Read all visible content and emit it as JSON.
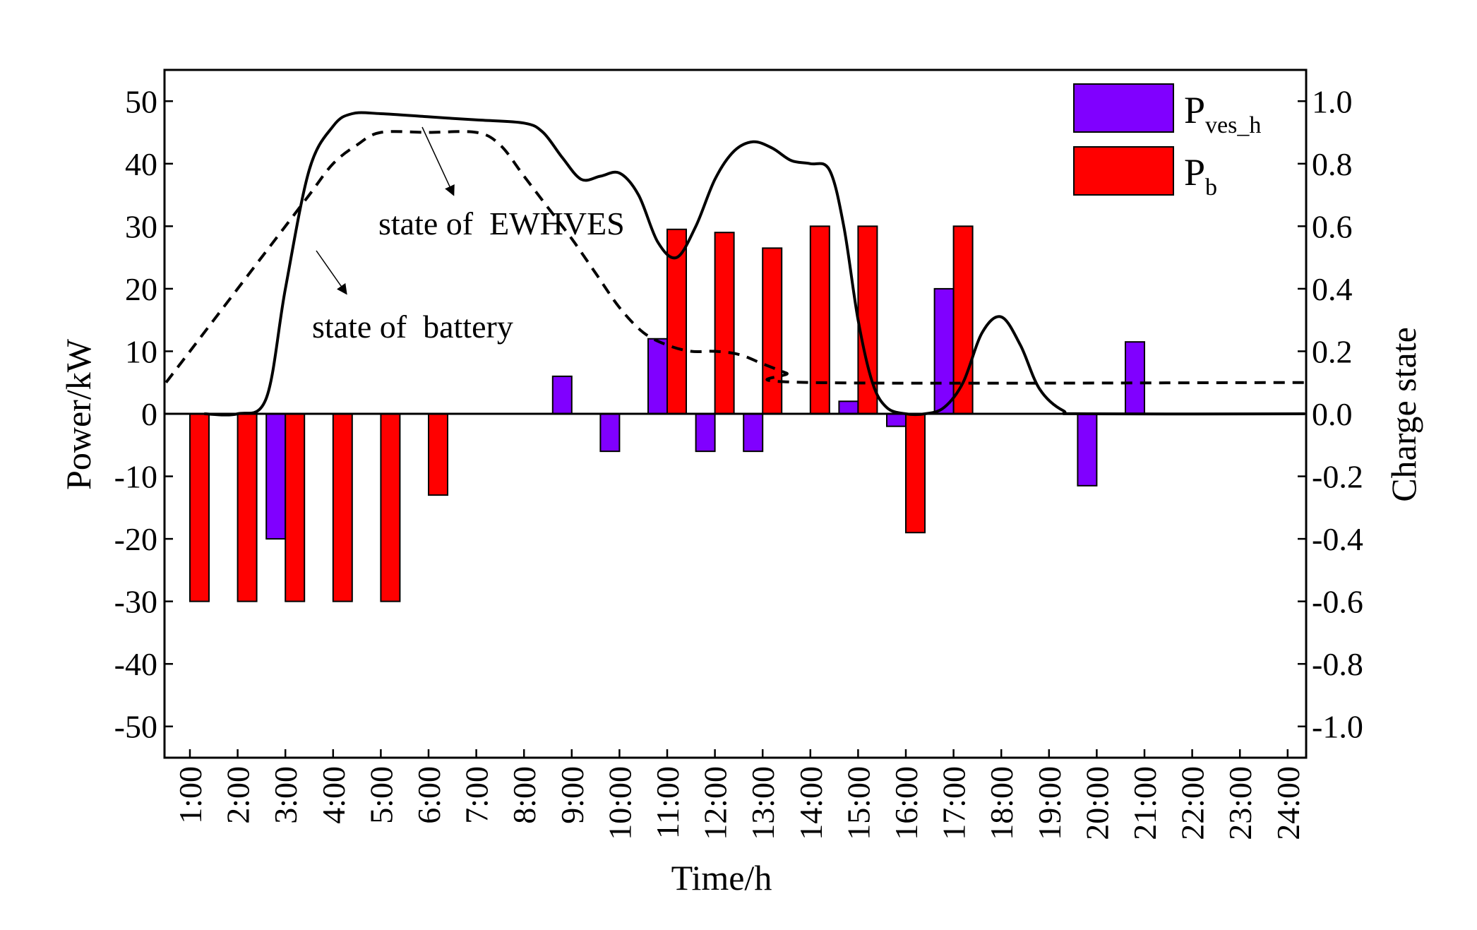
{
  "chart_data": {
    "type": "bar",
    "categories": [
      "1:00",
      "2:00",
      "3:00",
      "4:00",
      "5:00",
      "6:00",
      "7:00",
      "8:00",
      "9:00",
      "10:00",
      "11:00",
      "12:00",
      "13:00",
      "14:00",
      "15:00",
      "16:00",
      "17:00",
      "18:00",
      "19:00",
      "20:00",
      "21:00",
      "22:00",
      "23:00",
      "24:00"
    ],
    "xlabel": "Time/h",
    "ylabel": "Power/kW",
    "y2label": "Charge state",
    "ylim": [
      -55,
      55
    ],
    "y2lim": [
      -1.1,
      1.1
    ],
    "yticks": [
      -50,
      -40,
      -30,
      -20,
      -10,
      0,
      10,
      20,
      30,
      40,
      50
    ],
    "yticklabels": [
      "-50",
      "-40",
      "-30",
      "-20",
      "-10",
      "0",
      "10",
      "20",
      "30",
      "40",
      "50"
    ],
    "y2ticks": [
      -1.0,
      -0.8,
      -0.6,
      -0.4,
      -0.2,
      0.0,
      0.2,
      0.4,
      0.6,
      0.8,
      1.0
    ],
    "y2ticklabels": [
      "-1.0",
      "-0.8",
      "-0.6",
      "-0.4",
      "-0.2",
      "0.0",
      "0.2",
      "0.4",
      "0.6",
      "0.8",
      "1.0"
    ],
    "series": [
      {
        "name": "P_ves_h",
        "label_main": "P",
        "label_sub": "ves_h",
        "color": "#8000ff",
        "values": [
          0,
          0,
          -20,
          0,
          0,
          0,
          0,
          0,
          6,
          -6,
          12,
          -6,
          -6,
          0,
          2,
          -2,
          20,
          0,
          0,
          -11.5,
          11.5,
          0,
          0,
          0
        ]
      },
      {
        "name": "P_b",
        "label_main": "P",
        "label_sub": "b",
        "color": "#ff0000",
        "values": [
          -30,
          -30,
          -30,
          -30,
          -30,
          -13,
          0,
          0,
          0,
          0,
          29.5,
          29,
          26.5,
          30,
          30,
          -19,
          30,
          0,
          0,
          0,
          0,
          0,
          0,
          0
        ]
      }
    ],
    "lines": [
      {
        "name": "state of EWHVES",
        "style": "solid",
        "axis": "right",
        "points": [
          [
            0.3,
            0
          ],
          [
            1.0,
            0.0
          ],
          [
            1.6,
            0.05
          ],
          [
            2.0,
            0.4
          ],
          [
            2.5,
            0.78
          ],
          [
            3.0,
            0.92
          ],
          [
            3.4,
            0.96
          ],
          [
            4.0,
            0.96
          ],
          [
            5.0,
            0.95
          ],
          [
            6.0,
            0.94
          ],
          [
            7.0,
            0.93
          ],
          [
            7.4,
            0.9
          ],
          [
            7.8,
            0.82
          ],
          [
            8.2,
            0.75
          ],
          [
            8.6,
            0.76
          ],
          [
            9.0,
            0.77
          ],
          [
            9.4,
            0.7
          ],
          [
            9.8,
            0.55
          ],
          [
            10.2,
            0.5
          ],
          [
            10.6,
            0.6
          ],
          [
            11.0,
            0.75
          ],
          [
            11.4,
            0.84
          ],
          [
            11.8,
            0.87
          ],
          [
            12.2,
            0.85
          ],
          [
            12.6,
            0.81
          ],
          [
            13.0,
            0.8
          ],
          [
            13.4,
            0.78
          ],
          [
            13.7,
            0.6
          ],
          [
            14.0,
            0.3
          ],
          [
            14.3,
            0.1
          ],
          [
            14.6,
            0.02
          ],
          [
            15.0,
            0.0
          ],
          [
            15.4,
            0.0
          ],
          [
            15.8,
            0.02
          ],
          [
            16.2,
            0.1
          ],
          [
            16.6,
            0.26
          ],
          [
            17.0,
            0.31
          ],
          [
            17.4,
            0.22
          ],
          [
            17.8,
            0.08
          ],
          [
            18.3,
            0.01
          ],
          [
            18.8,
            0.0
          ],
          [
            23.6,
            0.0
          ]
        ]
      },
      {
        "name": "state of battery",
        "style": "dashed",
        "axis": "right",
        "points": [
          [
            -0.5,
            0.1
          ],
          [
            0.0,
            0.2
          ],
          [
            0.5,
            0.3
          ],
          [
            1.0,
            0.4
          ],
          [
            1.5,
            0.5
          ],
          [
            2.0,
            0.6
          ],
          [
            2.5,
            0.7
          ],
          [
            3.0,
            0.8
          ],
          [
            3.5,
            0.86
          ],
          [
            4.0,
            0.9
          ],
          [
            5.0,
            0.9
          ],
          [
            6.0,
            0.9
          ],
          [
            6.5,
            0.86
          ],
          [
            7.0,
            0.76
          ],
          [
            7.5,
            0.66
          ],
          [
            8.0,
            0.56
          ],
          [
            8.5,
            0.45
          ],
          [
            9.0,
            0.34
          ],
          [
            9.5,
            0.26
          ],
          [
            10.0,
            0.22
          ],
          [
            10.5,
            0.2
          ],
          [
            11.0,
            0.2
          ],
          [
            11.5,
            0.19
          ],
          [
            12.0,
            0.16
          ],
          [
            12.5,
            0.13
          ],
          [
            13.0,
            0.1
          ],
          [
            23.6,
            0.1
          ]
        ]
      }
    ],
    "annotations": [
      {
        "text": "state of  EWHVES",
        "target": "state of EWHVES"
      },
      {
        "text": "state of  battery",
        "target": "state of battery"
      }
    ],
    "legend": "top-right"
  }
}
